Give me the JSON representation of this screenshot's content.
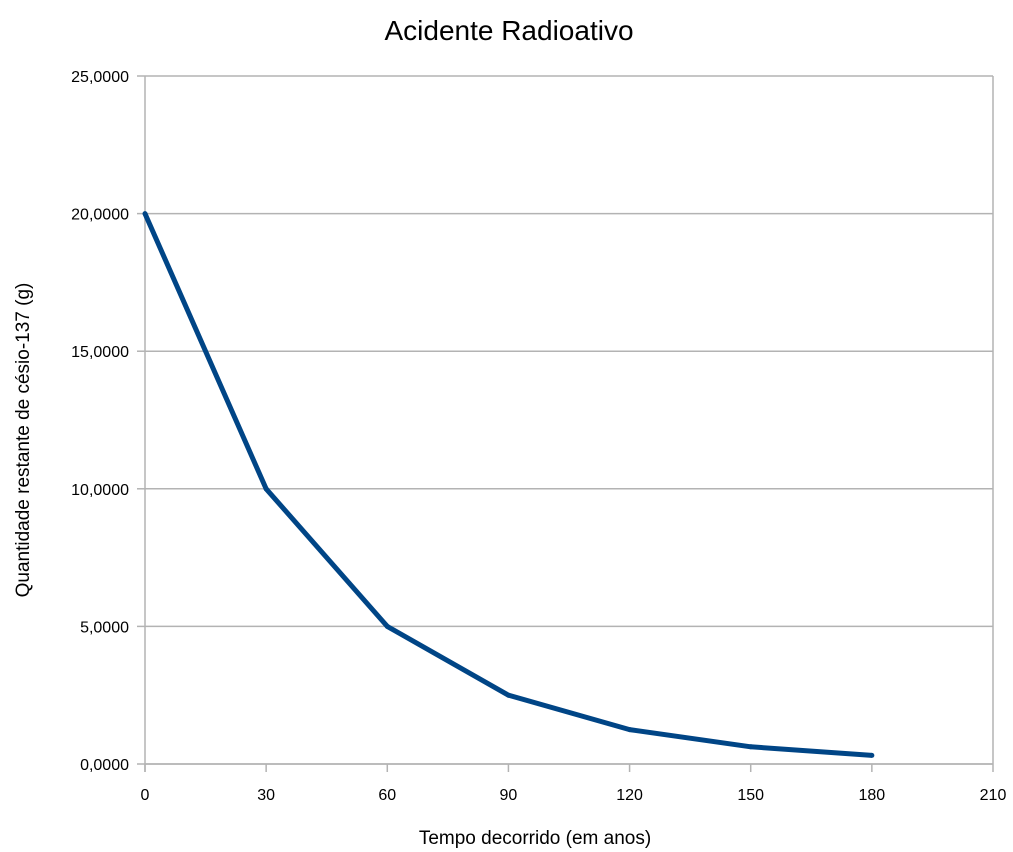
{
  "chart_data": {
    "type": "line",
    "title": "Acidente Radioativo",
    "xlabel": "Tempo decorrido (em anos)",
    "ylabel": "Quantidade restante de césio-137 (g)",
    "xlim": [
      0,
      210
    ],
    "ylim": [
      0,
      25
    ],
    "x_ticks": [
      0,
      30,
      60,
      90,
      120,
      150,
      180,
      210
    ],
    "y_ticks": [
      0,
      5,
      10,
      15,
      20,
      25
    ],
    "x_tick_labels": [
      "0",
      "30",
      "60",
      "90",
      "120",
      "150",
      "180",
      "210"
    ],
    "y_tick_labels": [
      "0,0000",
      "5,0000",
      "10,0000",
      "15,0000",
      "20,0000",
      "25,0000"
    ],
    "grid": "horizontal",
    "legend": "none",
    "series": [
      {
        "x": [
          0,
          30,
          60,
          90,
          120,
          150,
          180
        ],
        "y": [
          20,
          10,
          5,
          2.5,
          1.25,
          0.625,
          0.3125
        ],
        "color": "#004586"
      }
    ],
    "colors": {
      "grid": "#b3b3b3",
      "axis": "#b3b3b3",
      "line": "#004586"
    }
  }
}
